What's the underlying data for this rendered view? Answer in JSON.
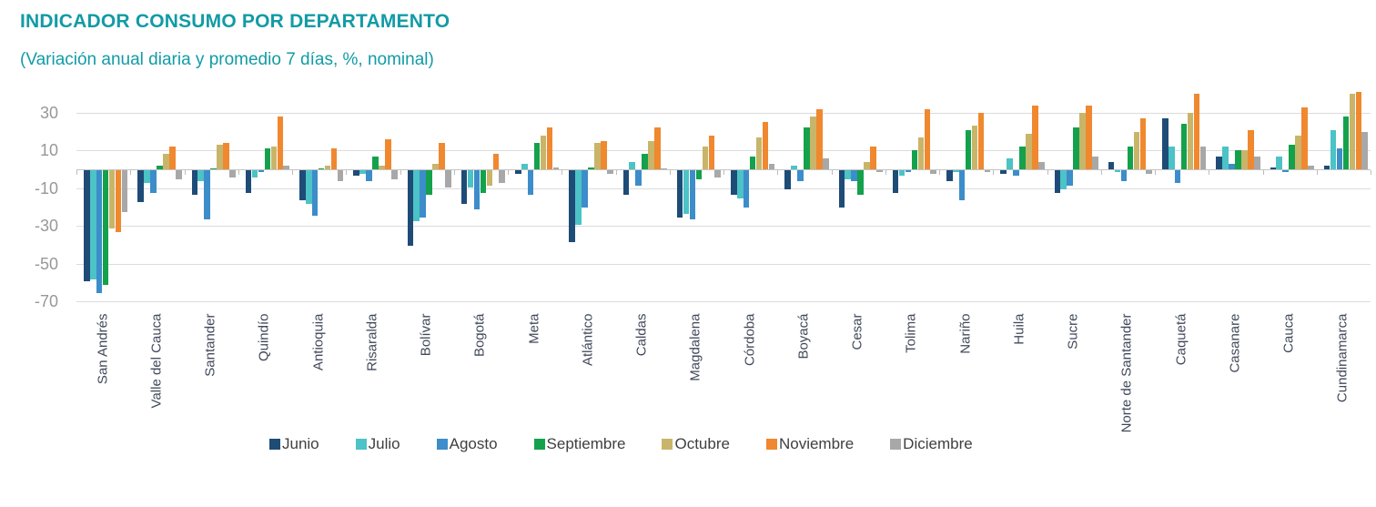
{
  "header": {
    "title": "INDICADOR CONSUMO POR DEPARTAMENTO",
    "subtitle": "(Variación anual diaria y promedio 7 días, %, nominal)",
    "accent_color": "#129BA6"
  },
  "chart_data": {
    "type": "bar",
    "title": "INDICADOR CONSUMO POR DEPARTAMENTO",
    "subtitle": "(Variación anual diaria y promedio 7 días, %, nominal)",
    "ylabel": "",
    "xlabel": "",
    "yticks": [
      30,
      10,
      -10,
      -30,
      -50,
      -70
    ],
    "ylim": [
      -70,
      45
    ],
    "grid": true,
    "legend_position": "bottom",
    "categories": [
      "San Andrés",
      "Valle del Cauca",
      "Santander",
      "Quindío",
      "Antioquia",
      "Risaralda",
      "Bolívar",
      "Bogotá",
      "Meta",
      "Atlántico",
      "Caldas",
      "Magdalena",
      "Córdoba",
      "Boyacá",
      "Cesar",
      "Tolima",
      "Nariño",
      "Huila",
      "Sucre",
      "Norte de Santander",
      "Caquetá",
      "Casanare",
      "Cauca",
      "Cundinamarca"
    ],
    "series": [
      {
        "name": "Junio",
        "color": "#1E4C77",
        "values": [
          -59,
          -17,
          -13,
          -12,
          -16,
          -3,
          -40,
          -18,
          -2,
          -38,
          -13,
          -25,
          -13,
          -10,
          -20,
          -12,
          -6,
          -2,
          -12,
          4,
          27,
          7,
          1,
          2
        ]
      },
      {
        "name": "Julio",
        "color": "#4BC3C7",
        "values": [
          -58,
          -7,
          -6,
          -4,
          -18,
          -2,
          -27,
          -9,
          3,
          -29,
          4,
          -23,
          -15,
          2,
          -5,
          -3,
          -1,
          6,
          -10,
          -1,
          12,
          12,
          7,
          21
        ]
      },
      {
        "name": "Agosto",
        "color": "#3C8DC9",
        "values": [
          -65,
          -12,
          -26,
          -1,
          -24,
          -6,
          -25,
          -21,
          -13,
          -20,
          -8,
          -26,
          -20,
          -6,
          -6,
          -1,
          -16,
          -3,
          -8,
          -6,
          -7,
          3,
          -1,
          11
        ]
      },
      {
        "name": "Septiembre",
        "color": "#14A14C",
        "values": [
          -61,
          2,
          0,
          11,
          0,
          7,
          -13,
          -12,
          14,
          1,
          8,
          -5,
          7,
          22,
          -13,
          10,
          21,
          12,
          22,
          12,
          24,
          10,
          13,
          28
        ]
      },
      {
        "name": "Octubre",
        "color": "#C9B56A",
        "values": [
          -31,
          8,
          13,
          12,
          2,
          2,
          3,
          -8,
          18,
          14,
          15,
          12,
          17,
          28,
          4,
          17,
          23,
          19,
          30,
          20,
          30,
          10,
          18,
          40
        ]
      },
      {
        "name": "Noviembre",
        "color": "#F0882F",
        "values": [
          -33,
          12,
          14,
          28,
          11,
          16,
          14,
          8,
          22,
          15,
          22,
          18,
          25,
          32,
          12,
          32,
          30,
          34,
          34,
          27,
          40,
          21,
          33,
          41
        ]
      },
      {
        "name": "Diciembre",
        "color": "#A8A8A8",
        "values": [
          -22,
          -5,
          -4,
          2,
          -6,
          -5,
          -9,
          -7,
          1,
          -2,
          0,
          -4,
          3,
          6,
          -1,
          -2,
          -1,
          4,
          7,
          -2,
          12,
          7,
          2,
          20
        ]
      }
    ]
  }
}
